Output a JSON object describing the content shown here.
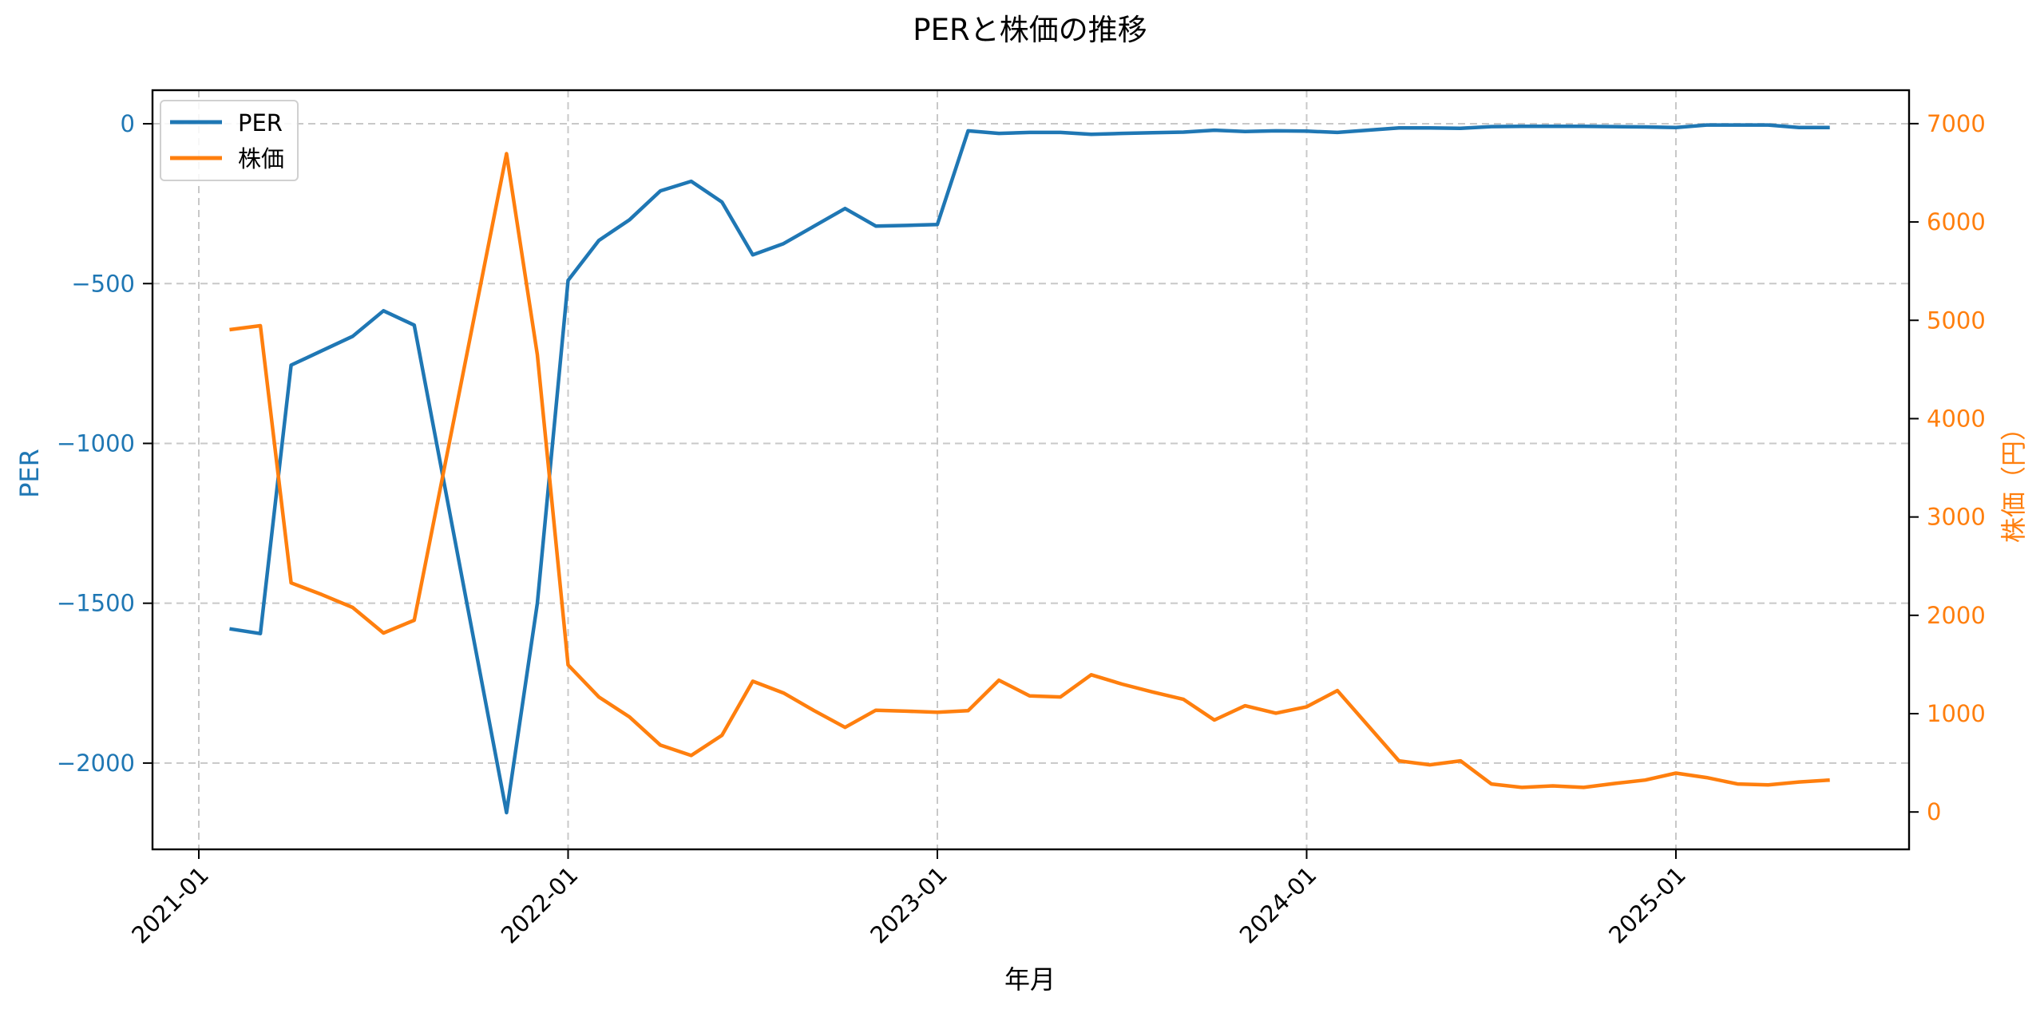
{
  "chart_data": {
    "type": "line",
    "title": "PERと株価の推移",
    "xlabel": "年月",
    "ylabel": "PER",
    "ylabel_right": "株価（円）",
    "x_ticks": [
      "2021-01",
      "2022-01",
      "2023-01",
      "2024-01",
      "2025-01"
    ],
    "y_ticks_left": [
      0,
      -500,
      -1000,
      -1500,
      -2000
    ],
    "y_ticks_right": [
      0,
      1000,
      2000,
      3000,
      4000,
      5000,
      6000,
      7000
    ],
    "ylim_left": [
      -2270,
      105
    ],
    "ylim_right": [
      -380,
      7340
    ],
    "grid": true,
    "legend_position": "upper left",
    "colors": {
      "PER": "#1f77b4",
      "株価": "#ff7f0e"
    },
    "x": [
      "2021-02",
      "2021-03",
      "2021-04",
      "2021-05",
      "2021-06",
      "2021-07",
      "2021-08",
      "2021-11",
      "2021-12",
      "2022-01",
      "2022-02",
      "2022-03",
      "2022-04",
      "2022-05",
      "2022-06",
      "2022-07",
      "2022-08",
      "2022-09",
      "2022-10",
      "2022-11",
      "2022-12",
      "2023-01",
      "2023-02",
      "2023-03",
      "2023-04",
      "2023-05",
      "2023-06",
      "2023-07",
      "2023-08",
      "2023-09",
      "2023-10",
      "2023-11",
      "2023-12",
      "2024-01",
      "2024-02",
      "2024-04",
      "2024-05",
      "2024-06",
      "2024-07",
      "2024-08",
      "2024-09",
      "2024-10",
      "2024-11",
      "2024-12",
      "2025-01",
      "2025-02",
      "2025-03",
      "2025-04",
      "2025-05",
      "2025-06"
    ],
    "series": [
      {
        "name": "PER",
        "axis": "left",
        "values": [
          -1580,
          -1595,
          -755,
          -710,
          -665,
          -585,
          -630,
          -2155,
          -1500,
          -490,
          -365,
          -300,
          -210,
          -180,
          -245,
          -410,
          -375,
          -320,
          -265,
          -320,
          -318,
          -315,
          -22,
          -30,
          -27,
          -27,
          -33,
          -30,
          -28,
          -26,
          -20,
          -24,
          -22,
          -23,
          -27,
          -13,
          -13,
          -14,
          -9,
          -8,
          -8,
          -8,
          -9,
          -10,
          -12,
          -4,
          -4,
          -4,
          -12,
          -12
        ]
      },
      {
        "name": "株価",
        "axis": "right",
        "values": [
          4905,
          4945,
          2330,
          2210,
          2080,
          1820,
          1950,
          6695,
          4650,
          1495,
          1170,
          965,
          680,
          575,
          780,
          1330,
          1210,
          1030,
          860,
          1035,
          1025,
          1015,
          1030,
          1340,
          1180,
          1170,
          1395,
          1300,
          1220,
          1145,
          935,
          1080,
          1005,
          1070,
          1235,
          520,
          480,
          520,
          285,
          250,
          265,
          250,
          290,
          325,
          395,
          350,
          285,
          275,
          305,
          325
        ]
      }
    ]
  },
  "legend": {
    "items": [
      {
        "label": "PER"
      },
      {
        "label": "株価"
      }
    ]
  }
}
